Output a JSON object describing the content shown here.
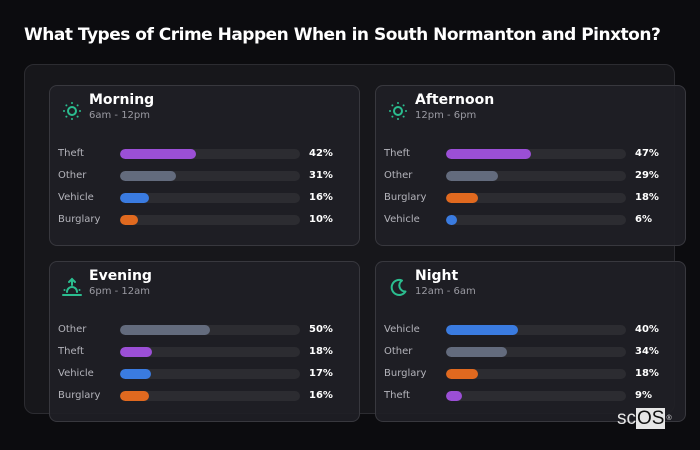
{
  "title": "What Types of Crime Happen When in South Normanton and Pinxton?",
  "colors": {
    "Theft": "#9b4fd6",
    "Other": "#636b7d",
    "Vehicle": "#3a7be0",
    "Burglary": "#e0691f",
    "icon": "#2bbd8f"
  },
  "cards": [
    {
      "name": "Morning",
      "range": "6am - 12pm",
      "icon": "sun-icon",
      "rows": [
        {
          "label": "Theft",
          "value": 42,
          "pct": "42%"
        },
        {
          "label": "Other",
          "value": 31,
          "pct": "31%"
        },
        {
          "label": "Vehicle",
          "value": 16,
          "pct": "16%"
        },
        {
          "label": "Burglary",
          "value": 10,
          "pct": "10%"
        }
      ]
    },
    {
      "name": "Afternoon",
      "range": "12pm - 6pm",
      "icon": "sun-icon",
      "rows": [
        {
          "label": "Theft",
          "value": 47,
          "pct": "47%"
        },
        {
          "label": "Other",
          "value": 29,
          "pct": "29%"
        },
        {
          "label": "Burglary",
          "value": 18,
          "pct": "18%"
        },
        {
          "label": "Vehicle",
          "value": 6,
          "pct": "6%"
        }
      ]
    },
    {
      "name": "Evening",
      "range": "6pm - 12am",
      "icon": "sunset-icon",
      "rows": [
        {
          "label": "Other",
          "value": 50,
          "pct": "50%"
        },
        {
          "label": "Theft",
          "value": 18,
          "pct": "18%"
        },
        {
          "label": "Vehicle",
          "value": 17,
          "pct": "17%"
        },
        {
          "label": "Burglary",
          "value": 16,
          "pct": "16%"
        }
      ]
    },
    {
      "name": "Night",
      "range": "12am - 6am",
      "icon": "moon-icon",
      "rows": [
        {
          "label": "Vehicle",
          "value": 40,
          "pct": "40%"
        },
        {
          "label": "Other",
          "value": 34,
          "pct": "34%"
        },
        {
          "label": "Burglary",
          "value": 18,
          "pct": "18%"
        },
        {
          "label": "Theft",
          "value": 9,
          "pct": "9%"
        }
      ]
    }
  ],
  "logo": {
    "sc": "sc",
    "os": "OS",
    "reg": "®"
  },
  "chart_data": {
    "type": "bar",
    "title": "What Types of Crime Happen When in South Normanton and Pinxton?",
    "orientation": "horizontal",
    "xlabel": "",
    "ylabel": "",
    "xlim": [
      0,
      100
    ],
    "grid": false,
    "legend": "none",
    "panels": [
      {
        "title": "Morning",
        "subtitle": "6am - 12pm",
        "categories": [
          "Theft",
          "Other",
          "Vehicle",
          "Burglary"
        ],
        "values": [
          42,
          31,
          16,
          10
        ]
      },
      {
        "title": "Afternoon",
        "subtitle": "12pm - 6pm",
        "categories": [
          "Theft",
          "Other",
          "Burglary",
          "Vehicle"
        ],
        "values": [
          47,
          29,
          18,
          6
        ]
      },
      {
        "title": "Evening",
        "subtitle": "6pm - 12am",
        "categories": [
          "Other",
          "Theft",
          "Vehicle",
          "Burglary"
        ],
        "values": [
          50,
          18,
          17,
          16
        ]
      },
      {
        "title": "Night",
        "subtitle": "12am - 6am",
        "categories": [
          "Vehicle",
          "Other",
          "Burglary",
          "Theft"
        ],
        "values": [
          40,
          34,
          18,
          9
        ]
      }
    ]
  }
}
